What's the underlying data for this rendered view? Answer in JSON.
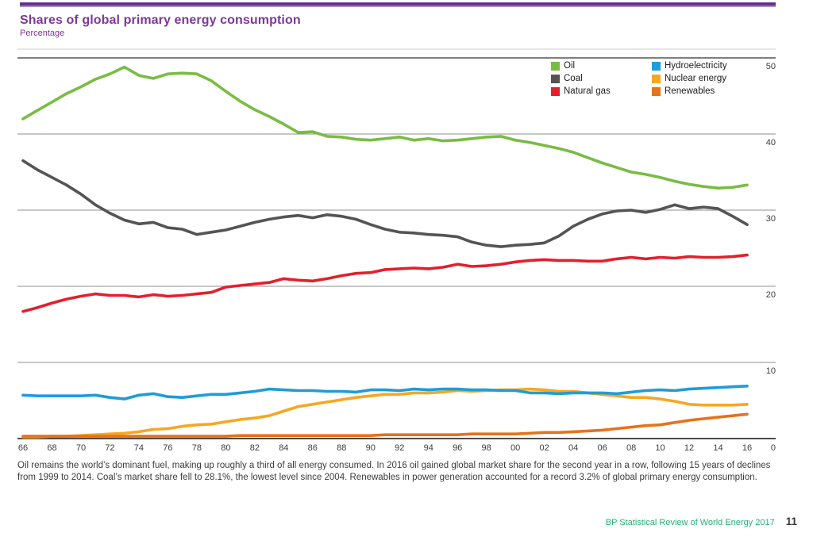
{
  "header": {
    "title": "Shares of global primary energy consumption",
    "subtitle": "Percentage"
  },
  "chart_data": {
    "type": "line",
    "title": "Shares of global primary energy consumption",
    "ylabel": "Percentage",
    "ylim": [
      0,
      50
    ],
    "y_ticks": [
      50,
      40,
      30,
      20,
      10,
      0
    ],
    "grid": true,
    "legend_position": "top-right",
    "x": [
      1966,
      1967,
      1968,
      1969,
      1970,
      1971,
      1972,
      1973,
      1974,
      1975,
      1976,
      1977,
      1978,
      1979,
      1980,
      1981,
      1982,
      1983,
      1984,
      1985,
      1986,
      1987,
      1988,
      1989,
      1990,
      1991,
      1992,
      1993,
      1994,
      1995,
      1996,
      1997,
      1998,
      1999,
      2000,
      2001,
      2002,
      2003,
      2004,
      2005,
      2006,
      2007,
      2008,
      2009,
      2010,
      2011,
      2012,
      2013,
      2014,
      2015,
      2016
    ],
    "x_tick_years": [
      1966,
      1968,
      1970,
      1972,
      1974,
      1976,
      1978,
      1980,
      1982,
      1984,
      1986,
      1988,
      1990,
      1992,
      1994,
      1996,
      1998,
      2000,
      2002,
      2004,
      2006,
      2008,
      2010,
      2012,
      2014,
      2016
    ],
    "x_ticks": [
      "66",
      "68",
      "70",
      "72",
      "74",
      "76",
      "78",
      "80",
      "82",
      "84",
      "86",
      "88",
      "90",
      "92",
      "94",
      "96",
      "98",
      "00",
      "02",
      "04",
      "06",
      "08",
      "10",
      "12",
      "14",
      "16"
    ],
    "series": [
      {
        "name": "Oil",
        "key": "oil",
        "color": "#79bc43",
        "values": [
          42.0,
          43.1,
          44.2,
          45.3,
          46.2,
          47.2,
          47.9,
          48.8,
          47.7,
          47.3,
          47.9,
          48.0,
          47.9,
          47.0,
          45.6,
          44.3,
          43.2,
          42.3,
          41.3,
          40.2,
          40.3,
          39.7,
          39.6,
          39.3,
          39.2,
          39.4,
          39.6,
          39.2,
          39.4,
          39.1,
          39.2,
          39.4,
          39.6,
          39.7,
          39.2,
          38.9,
          38.5,
          38.1,
          37.6,
          36.9,
          36.2,
          35.6,
          35.0,
          34.7,
          34.3,
          33.8,
          33.4,
          33.1,
          32.9,
          33.0,
          33.3
        ]
      },
      {
        "name": "Coal",
        "key": "coal",
        "color": "#545456",
        "values": [
          36.5,
          35.3,
          34.3,
          33.3,
          32.1,
          30.7,
          29.6,
          28.7,
          28.2,
          28.4,
          27.7,
          27.5,
          26.8,
          27.1,
          27.4,
          27.9,
          28.4,
          28.8,
          29.1,
          29.3,
          29.0,
          29.4,
          29.2,
          28.8,
          28.1,
          27.5,
          27.1,
          27.0,
          26.8,
          26.7,
          26.5,
          25.8,
          25.4,
          25.2,
          25.4,
          25.5,
          25.7,
          26.6,
          27.9,
          28.8,
          29.5,
          29.9,
          30.0,
          29.7,
          30.1,
          30.7,
          30.2,
          30.4,
          30.2,
          29.2,
          28.1
        ]
      },
      {
        "name": "Natural gas",
        "key": "natural-gas",
        "color": "#e2202d",
        "values": [
          16.7,
          17.2,
          17.8,
          18.3,
          18.7,
          19.0,
          18.8,
          18.8,
          18.6,
          18.9,
          18.7,
          18.8,
          19.0,
          19.2,
          19.9,
          20.1,
          20.3,
          20.5,
          21.0,
          20.8,
          20.7,
          21.0,
          21.4,
          21.7,
          21.8,
          22.2,
          22.3,
          22.4,
          22.3,
          22.5,
          22.9,
          22.6,
          22.7,
          22.9,
          23.2,
          23.4,
          23.5,
          23.4,
          23.4,
          23.3,
          23.3,
          23.6,
          23.8,
          23.6,
          23.8,
          23.7,
          23.9,
          23.8,
          23.8,
          23.9,
          24.1
        ]
      },
      {
        "name": "Hydroelectricity",
        "key": "hydroelectricity",
        "color": "#1d9dd9",
        "values": [
          5.7,
          5.6,
          5.6,
          5.6,
          5.6,
          5.7,
          5.4,
          5.2,
          5.7,
          5.9,
          5.5,
          5.4,
          5.6,
          5.8,
          5.8,
          6.0,
          6.2,
          6.5,
          6.4,
          6.3,
          6.3,
          6.2,
          6.2,
          6.1,
          6.4,
          6.4,
          6.3,
          6.5,
          6.4,
          6.5,
          6.5,
          6.4,
          6.4,
          6.3,
          6.3,
          6.0,
          6.0,
          5.9,
          6.0,
          6.0,
          6.0,
          5.9,
          6.1,
          6.3,
          6.4,
          6.3,
          6.5,
          6.6,
          6.7,
          6.8,
          6.9
        ]
      },
      {
        "name": "Nuclear energy",
        "key": "nuclear-energy",
        "color": "#f6a721",
        "values": [
          0.2,
          0.2,
          0.3,
          0.3,
          0.4,
          0.5,
          0.6,
          0.7,
          0.9,
          1.2,
          1.3,
          1.6,
          1.8,
          1.9,
          2.2,
          2.5,
          2.7,
          3.0,
          3.6,
          4.2,
          4.5,
          4.8,
          5.1,
          5.4,
          5.6,
          5.8,
          5.8,
          6.0,
          6.0,
          6.1,
          6.3,
          6.2,
          6.3,
          6.4,
          6.4,
          6.5,
          6.4,
          6.2,
          6.2,
          6.0,
          5.8,
          5.6,
          5.4,
          5.4,
          5.2,
          4.9,
          4.5,
          4.4,
          4.4,
          4.4,
          4.5
        ]
      },
      {
        "name": "Renewables",
        "key": "renewables",
        "color": "#e8711a",
        "values": [
          0.3,
          0.3,
          0.3,
          0.3,
          0.3,
          0.3,
          0.3,
          0.3,
          0.3,
          0.3,
          0.3,
          0.3,
          0.3,
          0.3,
          0.3,
          0.4,
          0.4,
          0.4,
          0.4,
          0.4,
          0.4,
          0.4,
          0.4,
          0.4,
          0.4,
          0.5,
          0.5,
          0.5,
          0.5,
          0.5,
          0.5,
          0.6,
          0.6,
          0.6,
          0.6,
          0.7,
          0.8,
          0.8,
          0.9,
          1.0,
          1.1,
          1.3,
          1.5,
          1.7,
          1.8,
          2.1,
          2.4,
          2.6,
          2.8,
          3.0,
          3.2
        ]
      }
    ]
  },
  "footnote": {
    "text": "Oil remains the world’s dominant fuel, making up roughly a third of all energy consumed. In 2016 oil gained global market share for the second year in a row, following 15 years of declines from 1999 to 2014. Coal’s market share fell to 28.1%, the lowest level since 2004. Renewables in power generation accounted for a record 3.2% of global primary energy consumption."
  },
  "footer": {
    "source": "BP Statistical Review of World Energy 2017",
    "page": "11"
  },
  "colors": {
    "title_purple": "#7d3897",
    "rule_purple": "#63318c",
    "footer_green": "#23b373",
    "gridline": "#8f8f8f",
    "axis": "#4d4d4d",
    "tick_text": "#3c3c3b"
  }
}
